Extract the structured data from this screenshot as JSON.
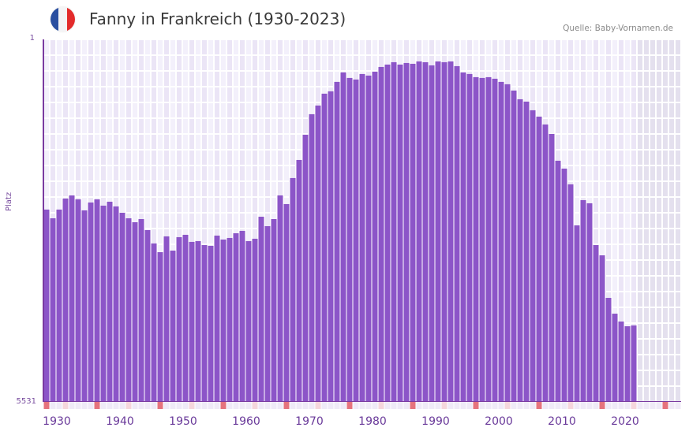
{
  "header": {
    "title": "Fanny in Frankreich (1930-2023)",
    "source": "Quelle: Baby-Vornamen.de",
    "flag_icon": "france-flag-icon",
    "flag_colors": [
      "#2a4fa0",
      "#f4f4f6",
      "#e32b2b"
    ]
  },
  "colors": {
    "bar": "#8c55c8",
    "grid_light": "#f3f0fb",
    "grid_dark": "#ebe5f6",
    "future_bg": "#e4e0ee",
    "axis": "#7a3aa0",
    "decade_marker": "#e5737d",
    "half_decade_marker": "#f5d6dc",
    "year_marker": "#efeaf7"
  },
  "axes": {
    "y_top_label": "1",
    "y_bottom_label": "5531",
    "y_title": "Platz",
    "x_ticks": [
      "1930",
      "1940",
      "1950",
      "1960",
      "1970",
      "1980",
      "1990",
      "2000",
      "2010",
      "2020"
    ]
  },
  "chart_data": {
    "type": "bar",
    "title": "Fanny in Frankreich (1930-2023)",
    "subtitle": "Quelle: Baby-Vornamen.de",
    "xlabel": "",
    "ylabel": "Platz",
    "y_inverted": true,
    "ylim": [
      5531,
      1
    ],
    "xlim": [
      1930,
      2029
    ],
    "grid": true,
    "legend": null,
    "categories": [
      1930,
      1931,
      1932,
      1933,
      1934,
      1935,
      1936,
      1937,
      1938,
      1939,
      1940,
      1941,
      1942,
      1943,
      1944,
      1945,
      1946,
      1947,
      1948,
      1949,
      1950,
      1951,
      1952,
      1953,
      1954,
      1955,
      1956,
      1957,
      1958,
      1959,
      1960,
      1961,
      1962,
      1963,
      1964,
      1965,
      1966,
      1967,
      1968,
      1969,
      1970,
      1971,
      1972,
      1973,
      1974,
      1975,
      1976,
      1977,
      1978,
      1979,
      1980,
      1981,
      1982,
      1983,
      1984,
      1985,
      1986,
      1987,
      1988,
      1989,
      1990,
      1991,
      1992,
      1993,
      1994,
      1995,
      1996,
      1997,
      1998,
      1999,
      2000,
      2001,
      2002,
      2003,
      2004,
      2005,
      2006,
      2007,
      2008,
      2009,
      2010,
      2011,
      2012,
      2013,
      2014,
      2015,
      2016,
      2017,
      2018,
      2019,
      2020,
      2021,
      2022,
      2023
    ],
    "series": [
      {
        "name": "Platz (Rang)",
        "values": [
          2597,
          2730,
          2597,
          2429,
          2381,
          2441,
          2609,
          2489,
          2441,
          2537,
          2477,
          2549,
          2645,
          2730,
          2790,
          2742,
          2910,
          3114,
          3247,
          3006,
          3223,
          3018,
          2982,
          3090,
          3078,
          3138,
          3150,
          2994,
          3054,
          3030,
          2958,
          2922,
          3078,
          3042,
          2706,
          2850,
          2742,
          2381,
          2513,
          2116,
          1840,
          1455,
          1142,
          1010,
          829,
          793,
          649,
          505,
          589,
          613,
          529,
          553,
          493,
          421,
          385,
          349,
          385,
          361,
          373,
          337,
          349,
          397,
          337,
          349,
          337,
          409,
          505,
          529,
          577,
          589,
          577,
          601,
          649,
          685,
          781,
          914,
          950,
          1082,
          1179,
          1299,
          1443,
          1852,
          1972,
          2212,
          2838,
          2453,
          2501,
          3138,
          3295,
          3944,
          4185,
          4305,
          4377,
          4365
        ]
      }
    ]
  }
}
